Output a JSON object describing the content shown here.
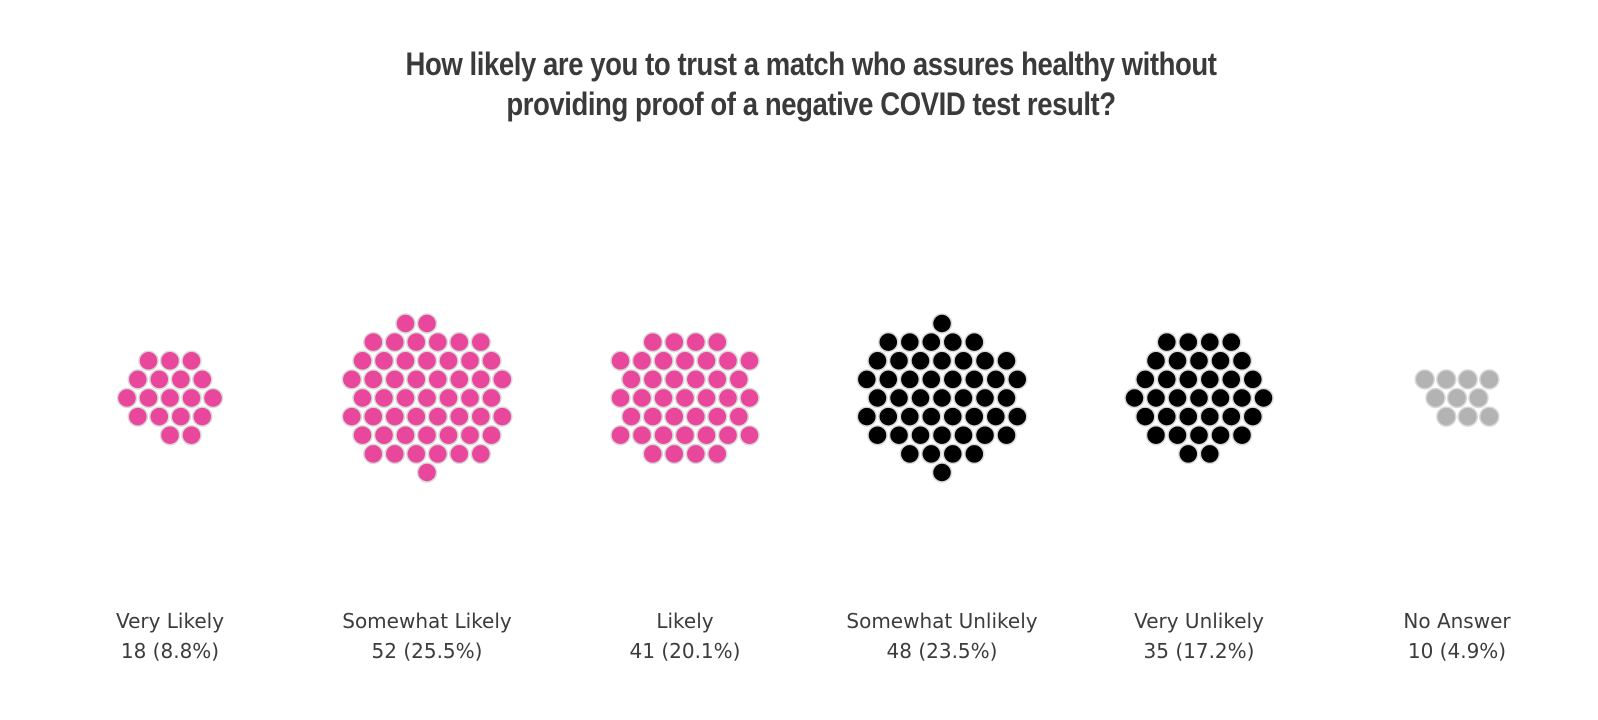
{
  "chart_data": {
    "type": "beeswarm",
    "title_lines": [
      "How likely are you to trust a match who assures healthy without",
      "providing proof of a negative COVID test result?"
    ],
    "categories": [
      {
        "label": "Very Likely",
        "count": 18,
        "percent_label": "18 (8.8%)",
        "color": "#e8479b"
      },
      {
        "label": "Somewhat Likely",
        "count": 52,
        "percent_label": "52 (25.5%)",
        "color": "#e8479b"
      },
      {
        "label": "Likely",
        "count": 41,
        "percent_label": "41 (20.1%)",
        "color": "#e8479b"
      },
      {
        "label": "Somewhat Unlikely",
        "count": 48,
        "percent_label": "48 (23.5%)",
        "color": "#000000"
      },
      {
        "label": "Very Unlikely",
        "count": 35,
        "percent_label": "35 (17.2%)",
        "color": "#000000"
      },
      {
        "label": "No Answer",
        "count": 10,
        "percent_label": "10 (4.9%)",
        "color": "#b3b3b3"
      }
    ],
    "dot_outline_color": "#d9d9d9"
  }
}
